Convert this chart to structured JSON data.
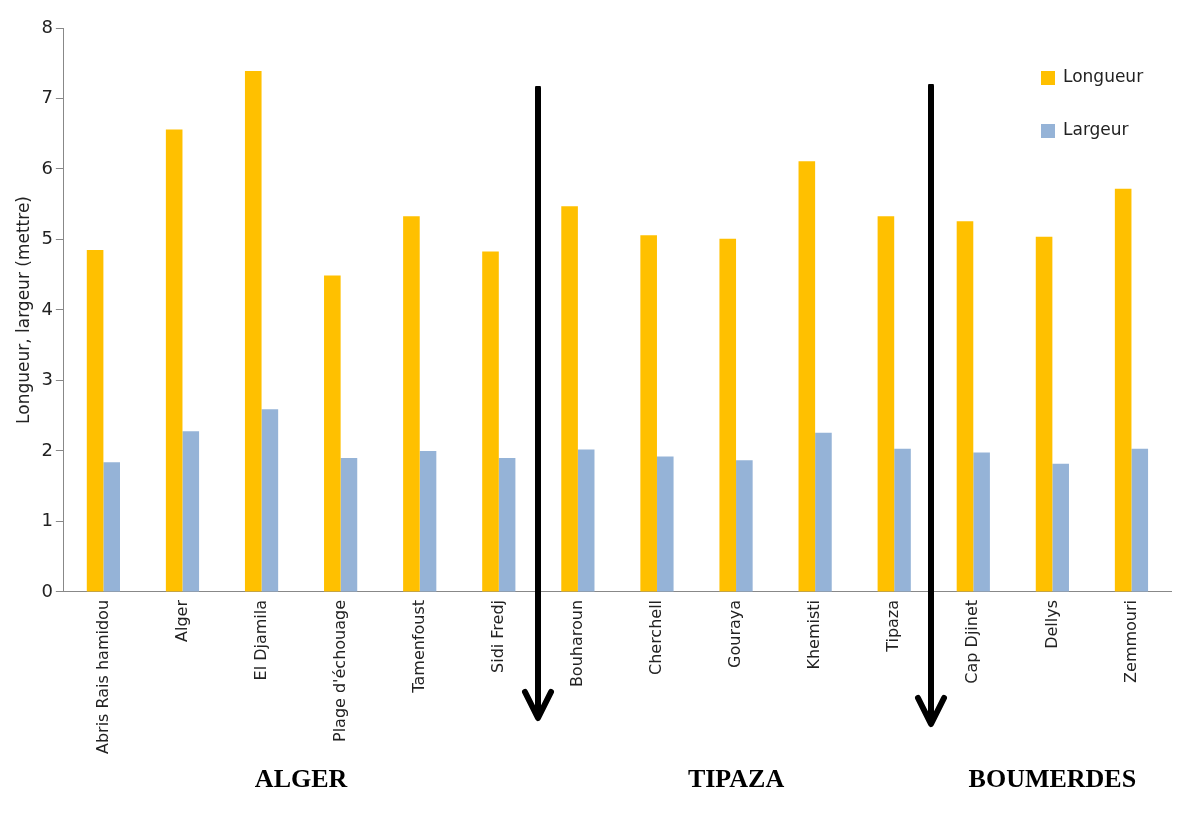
{
  "chart_data": {
    "type": "bar",
    "ylabel": "Longueur, largeur (mettre)",
    "categories": [
      "Abris Rais hamidou",
      "Alger",
      "El Djamila",
      "Plage d'échouage",
      "Tamenfoust",
      "Sidi Fredj",
      "Bouharoun",
      "Cherchell",
      "Gouraya",
      "Khemisti",
      "Tipaza",
      "Cap Djinet",
      "Dellys",
      "Zemmouri"
    ],
    "series": [
      {
        "name": "Longueur",
        "color": "#ffc000",
        "values": [
          4.85,
          6.56,
          7.39,
          4.49,
          5.33,
          4.83,
          5.47,
          5.06,
          5.01,
          6.11,
          5.33,
          5.26,
          5.04,
          5.72
        ]
      },
      {
        "name": "Largeur",
        "color": "#95b3d7",
        "values": [
          1.84,
          2.28,
          2.59,
          1.9,
          2.0,
          1.9,
          2.02,
          1.92,
          1.87,
          2.26,
          2.03,
          1.98,
          1.82,
          2.03
        ]
      }
    ],
    "ylim": [
      0,
      8
    ],
    "yticks": [
      0,
      1,
      2,
      3,
      4,
      5,
      6,
      7,
      8
    ],
    "grid": false,
    "legend": "top right",
    "annotations": [
      "ALGER",
      "TIPAZA",
      "BOUMERDES"
    ]
  }
}
